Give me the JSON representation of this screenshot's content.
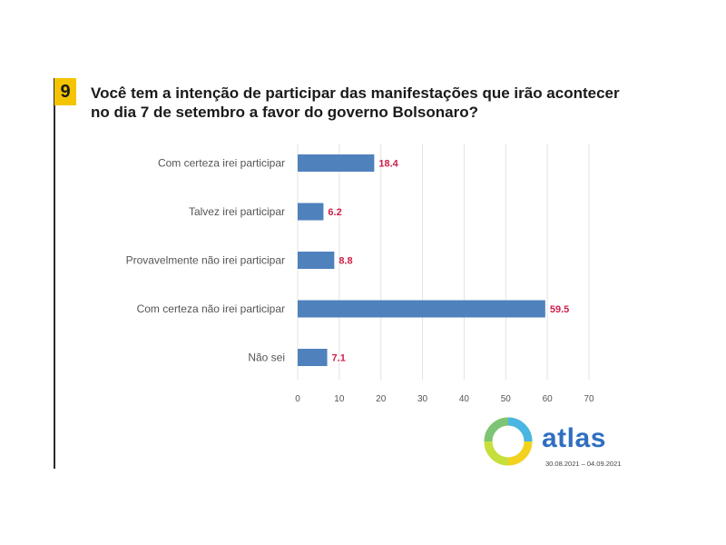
{
  "header": {
    "question_number": "9",
    "title_line1": "Você tem a intenção de participar das manifestações que irão acontecer",
    "title_line2": "no dia 7 de setembro a favor do governo Bolsonaro?"
  },
  "brand": {
    "name": "atlas",
    "date_range": "30.08.2021 – 04.09.2021"
  },
  "colors": {
    "bar": "#4f81bd",
    "value_label": "#d0204a",
    "badge": "#f5c400"
  },
  "chart_data": {
    "type": "bar",
    "orientation": "horizontal",
    "categories": [
      "Com certeza irei participar",
      "Talvez irei participar",
      "Provavelmente não irei participar",
      "Com certeza não irei participar",
      "Não sei"
    ],
    "values": [
      18.4,
      6.2,
      8.8,
      59.5,
      7.1
    ],
    "xlim": [
      0,
      70
    ],
    "xticks": [
      0,
      10,
      20,
      30,
      40,
      50,
      60,
      70
    ],
    "grid": true,
    "legend": "none"
  }
}
